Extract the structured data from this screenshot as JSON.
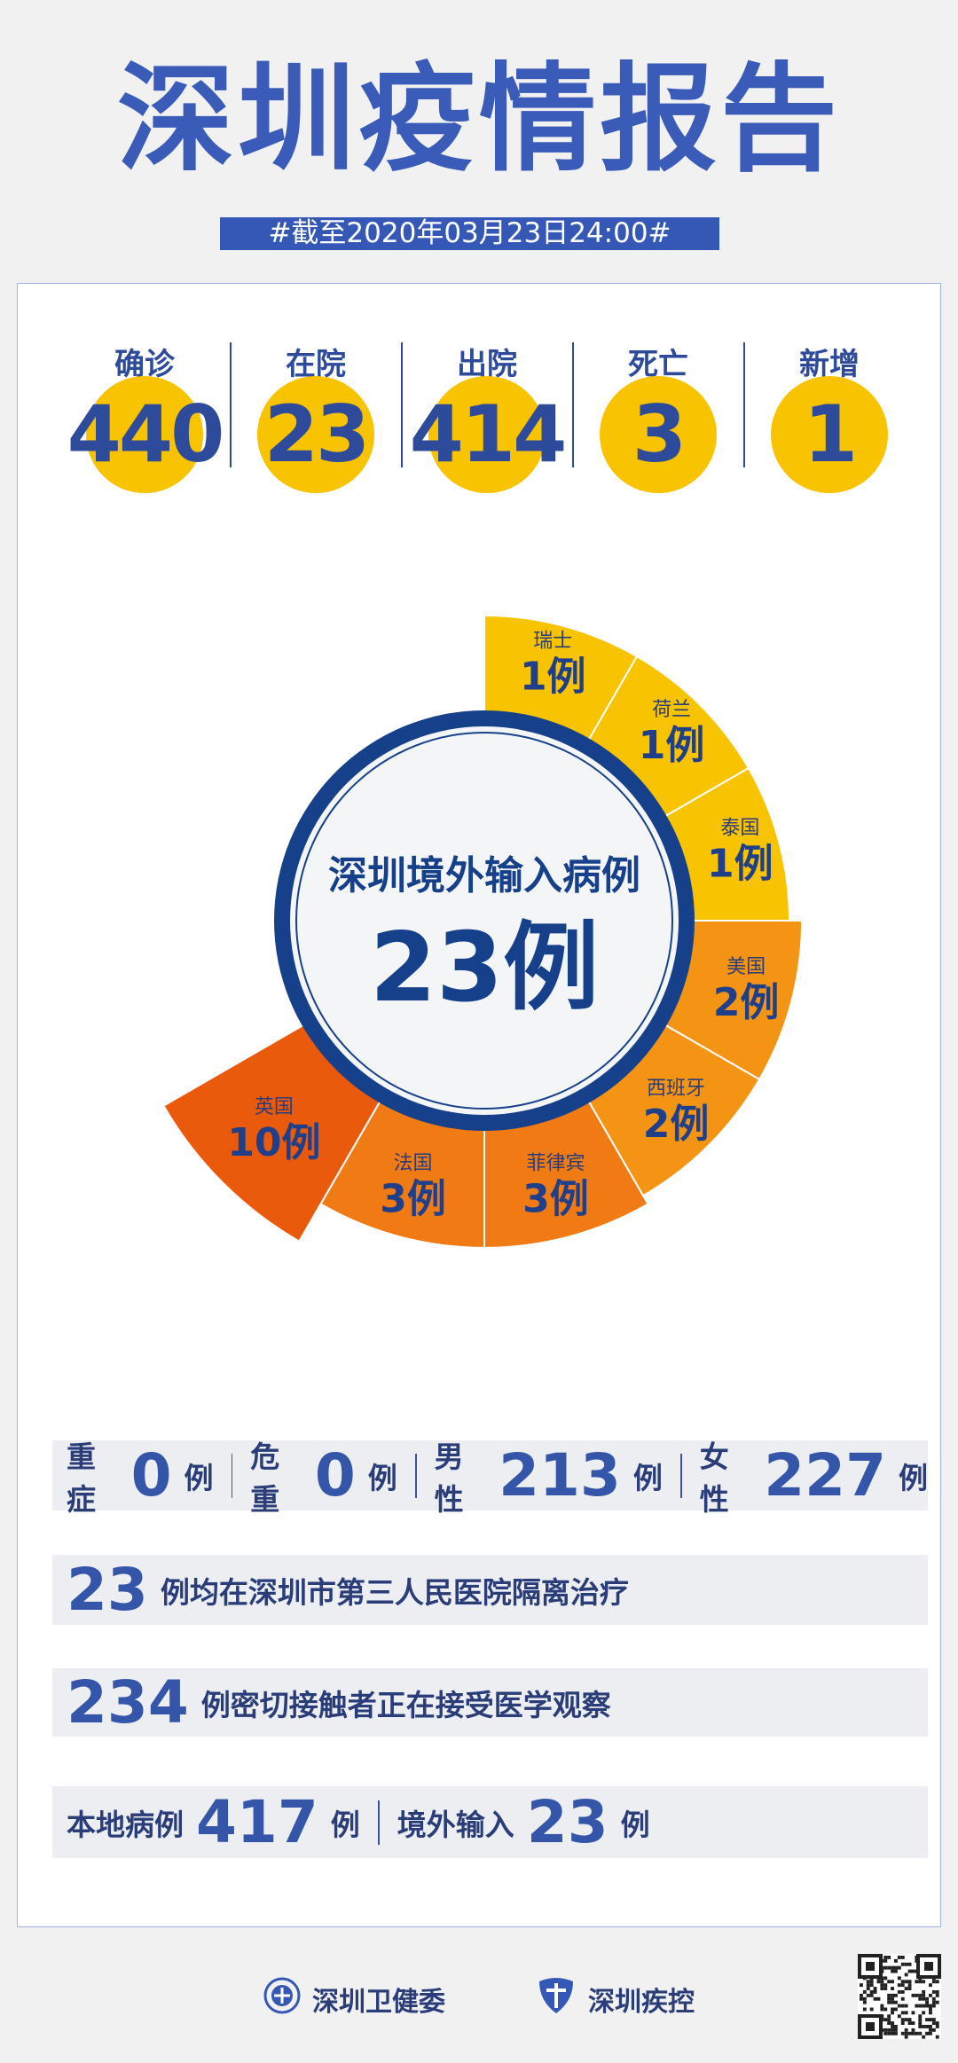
{
  "header": {
    "title": "深圳疫情报告",
    "subtitle": "#截至2020年03月23日24:00#"
  },
  "stats": [
    {
      "label": "确诊",
      "value": 440
    },
    {
      "label": "在院",
      "value": 23
    },
    {
      "label": "出院",
      "value": 414
    },
    {
      "label": "死亡",
      "value": 3
    },
    {
      "label": "新增",
      "value": 1
    }
  ],
  "chart_data": {
    "type": "rose",
    "center_title": "深圳境外输入病例",
    "center_value": "23例",
    "categories": [
      "瑞士",
      "荷兰",
      "泰国",
      "美国",
      "西班牙",
      "菲律宾",
      "法国",
      "英国"
    ],
    "values": [
      1,
      1,
      1,
      2,
      2,
      3,
      3,
      10
    ],
    "value_labels": [
      "1例",
      "1例",
      "1例",
      "2例",
      "2例",
      "3例",
      "3例",
      "10例"
    ],
    "colors": [
      "#f8c300",
      "#f8c300",
      "#f8c300",
      "#f39414",
      "#f39414",
      "#f07a14",
      "#f07a14",
      "#ea5a0c"
    ]
  },
  "rows": [
    {
      "items": [
        {
          "label": "重症",
          "value": 0,
          "unit": "例"
        },
        {
          "label": "危重",
          "value": 0,
          "unit": "例"
        },
        {
          "label": "男性",
          "value": 213,
          "unit": "例"
        },
        {
          "label": "女性",
          "value": 227,
          "unit": "例"
        }
      ]
    },
    {
      "items": [
        {
          "value": 23,
          "unit": "例均在深圳市第三人民医院隔离治疗"
        }
      ]
    },
    {
      "items": [
        {
          "value": 234,
          "unit": "例密切接触者正在接受医学观察"
        }
      ]
    },
    {
      "items": [
        {
          "label": "本地病例",
          "value": 417,
          "unit": "例"
        },
        {
          "label": "境外输入",
          "value": 23,
          "unit": "例"
        }
      ]
    }
  ],
  "footer": {
    "org1": "深圳卫健委",
    "org2": "深圳疾控"
  }
}
